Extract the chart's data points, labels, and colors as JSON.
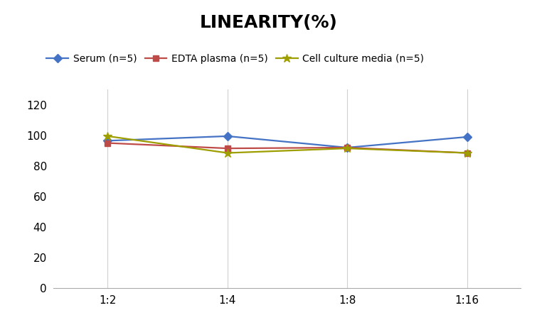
{
  "title": "LINEARITY(%)",
  "title_fontsize": 18,
  "title_fontweight": "bold",
  "x_labels": [
    "1:2",
    "1:4",
    "1:8",
    "1:16"
  ],
  "x_positions": [
    0,
    1,
    2,
    3
  ],
  "series": [
    {
      "label": "Serum (n=5)",
      "values": [
        96.5,
        99.5,
        92.0,
        99.0
      ],
      "color": "#4472C4",
      "marker": "D",
      "markersize": 6,
      "linewidth": 1.6
    },
    {
      "label": "EDTA plasma (n=5)",
      "values": [
        95.0,
        91.5,
        92.0,
        88.5
      ],
      "color": "#BE4B48",
      "marker": "s",
      "markersize": 6,
      "linewidth": 1.6
    },
    {
      "label": "Cell culture media (n=5)",
      "values": [
        99.5,
        88.5,
        91.5,
        88.5
      ],
      "color": "#9E9E00",
      "marker": "*",
      "markersize": 9,
      "linewidth": 1.6
    }
  ],
  "ylim": [
    0,
    130
  ],
  "yticks": [
    0,
    20,
    40,
    60,
    80,
    100,
    120
  ],
  "grid_color": "#d0d0d0",
  "background_color": "#ffffff",
  "legend_fontsize": 10,
  "tick_fontsize": 11,
  "xlim": [
    -0.45,
    3.45
  ]
}
